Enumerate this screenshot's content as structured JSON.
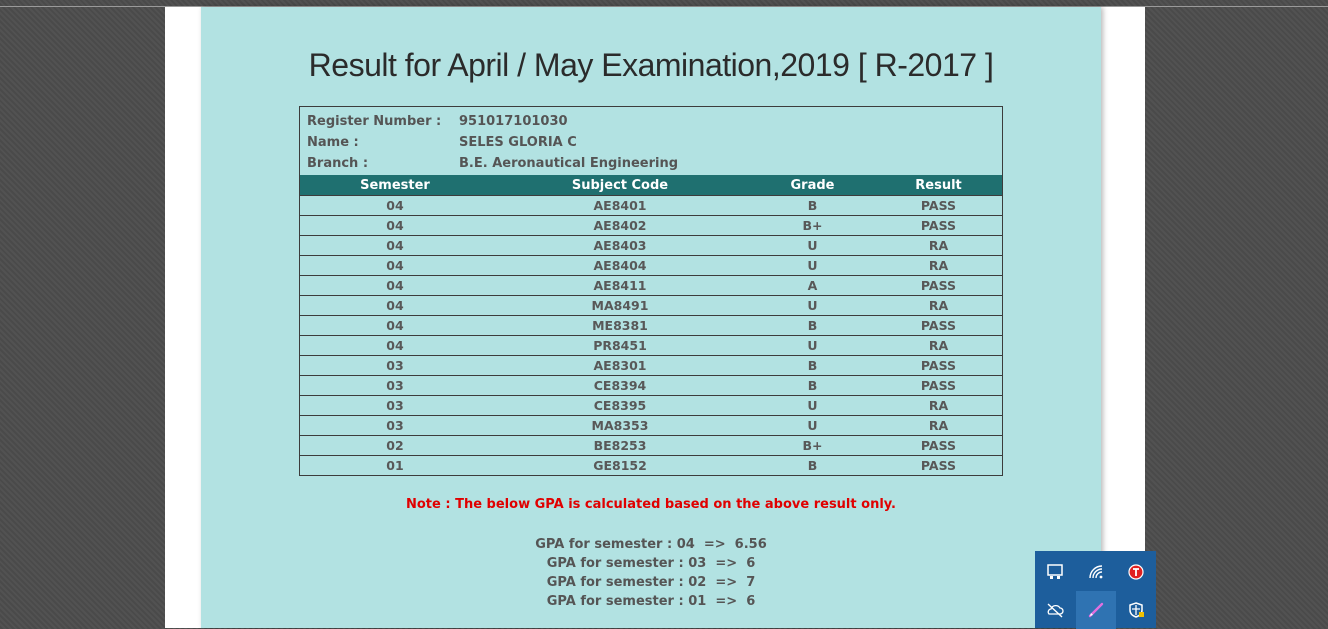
{
  "page": {
    "title": "Result for April / May Examination,2019 [ R-2017 ]"
  },
  "student": {
    "register_label": "Register Number :",
    "register_value": "951017101030",
    "name_label": "Name :",
    "name_value": "SELES GLORIA C",
    "branch_label": "Branch :",
    "branch_value": "B.E. Aeronautical Engineering"
  },
  "table": {
    "headers": [
      "Semester",
      "Subject Code",
      "Grade",
      "Result"
    ],
    "rows": [
      [
        "04",
        "AE8401",
        "B",
        "PASS"
      ],
      [
        "04",
        "AE8402",
        "B+",
        "PASS"
      ],
      [
        "04",
        "AE8403",
        "U",
        "RA"
      ],
      [
        "04",
        "AE8404",
        "U",
        "RA"
      ],
      [
        "04",
        "AE8411",
        "A",
        "PASS"
      ],
      [
        "04",
        "MA8491",
        "U",
        "RA"
      ],
      [
        "04",
        "ME8381",
        "B",
        "PASS"
      ],
      [
        "04",
        "PR8451",
        "U",
        "RA"
      ],
      [
        "03",
        "AE8301",
        "B",
        "PASS"
      ],
      [
        "03",
        "CE8394",
        "B",
        "PASS"
      ],
      [
        "03",
        "CE8395",
        "U",
        "RA"
      ],
      [
        "03",
        "MA8353",
        "U",
        "RA"
      ],
      [
        "02",
        "BE8253",
        "B+",
        "PASS"
      ],
      [
        "01",
        "GE8152",
        "B",
        "PASS"
      ]
    ]
  },
  "note": "Note : The below GPA is calculated based on the above result only.",
  "gpa": [
    "GPA for semester : 04  =>  6.56",
    "GPA for semester : 03  =>  6",
    "GPA for semester : 02  =>  7",
    "GPA for semester : 01  =>  6"
  ],
  "colors": {
    "panel_bg": "#b2e2e2",
    "header_bg": "#1f7070",
    "note_red": "#e00000",
    "tray_bg": "#1d5e9c"
  },
  "tray_icons": [
    "monitor-icon",
    "wifi-icon",
    "antivirus-icon",
    "cloud-off-icon",
    "pen-icon",
    "security-shield-icon"
  ]
}
